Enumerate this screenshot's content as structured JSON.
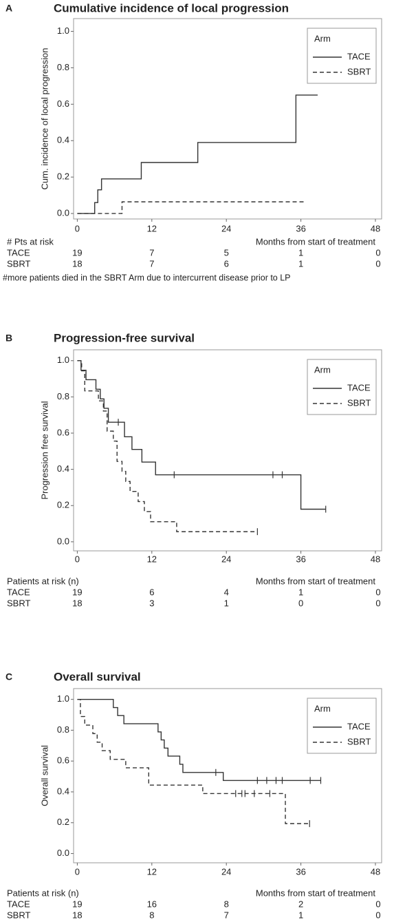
{
  "chart_data": [
    {
      "type": "line",
      "drawstyle": "steps-post",
      "panel": "A",
      "title": "Cumulative incidence of local progression",
      "ylabel": "Cum. incidence of local progression",
      "xlabel": "Months from start of treatment",
      "xlim": [
        -0.6,
        49
      ],
      "ylim": [
        -0.03,
        1.07
      ],
      "xticks": [
        0,
        12,
        24,
        36,
        48
      ],
      "yticks": [
        {
          "value": 0,
          "label": "0.0"
        },
        {
          "value": 0.2,
          "label": "0.2"
        },
        {
          "value": 0.4,
          "label": "0.4"
        },
        {
          "value": 0.6,
          "label": "0.6"
        },
        {
          "value": 0.8,
          "label": "0.8"
        },
        {
          "value": 1,
          "label": "1.0"
        }
      ],
      "legend_title": "Arm",
      "legend": "upper right",
      "series": [
        {
          "name": "TACE",
          "color": "#333333",
          "dash": "solid",
          "x": [
            0,
            2.8,
            3.3,
            3.9,
            10.3,
            19.4,
            35.2,
            38.7
          ],
          "values": [
            0,
            0.06,
            0.13,
            0.19,
            0.28,
            0.39,
            0.65,
            0.65
          ],
          "censored": []
        },
        {
          "name": "SBRT",
          "color": "#333333",
          "dash": "dashed",
          "x": [
            0,
            7.2,
            36.7
          ],
          "values": [
            0,
            0.064,
            0.064
          ],
          "censored": []
        }
      ],
      "risk_table": {
        "title": "# Pts at risk",
        "rows": [
          {
            "name": "TACE",
            "values": [
              19,
              7,
              5,
              1,
              0
            ]
          },
          {
            "name": "SBRT",
            "values": [
              18,
              7,
              6,
              1,
              0
            ]
          }
        ]
      },
      "footnote": "#more patients died in the SBRT Arm due to intercurrent disease prior to LP"
    },
    {
      "type": "line",
      "drawstyle": "steps-post",
      "panel": "B",
      "title": "Progression-free survival",
      "ylabel": "Progression free survival",
      "xlabel": "Months from start of treatment",
      "xlim": [
        -0.6,
        49
      ],
      "ylim": [
        -0.05,
        1.06
      ],
      "xticks": [
        0,
        12,
        24,
        36,
        48
      ],
      "yticks": [
        {
          "value": 0,
          "label": "0.0"
        },
        {
          "value": 0.2,
          "label": "0.2"
        },
        {
          "value": 0.4,
          "label": "0.4"
        },
        {
          "value": 0.6,
          "label": "0.6"
        },
        {
          "value": 0.8,
          "label": "0.8"
        },
        {
          "value": 1,
          "label": "1.0"
        }
      ],
      "legend_title": "Arm",
      "legend": "upper right",
      "series": [
        {
          "name": "TACE",
          "color": "#333333",
          "dash": "solid",
          "x": [
            0,
            0.6,
            1.4,
            3.0,
            3.7,
            4.3,
            5.0,
            7.6,
            8.8,
            10.4,
            11.4,
            12.6,
            36.0,
            40.0
          ],
          "values": [
            1,
            0.947,
            0.895,
            0.842,
            0.789,
            0.737,
            0.66,
            0.58,
            0.51,
            0.44,
            0.44,
            0.37,
            0.18,
            0.18
          ],
          "censored": [
            6.6,
            15.6,
            31.5,
            33.0,
            40.0
          ]
        },
        {
          "name": "SBRT",
          "color": "#333333",
          "dash": "dashed",
          "x": [
            0,
            0.7,
            1.2,
            3.4,
            4.2,
            4.8,
            5.8,
            6.4,
            7.2,
            7.8,
            8.5,
            9.8,
            10.8,
            11.8,
            16.0,
            29.0
          ],
          "values": [
            1,
            0.944,
            0.833,
            0.778,
            0.722,
            0.611,
            0.556,
            0.444,
            0.389,
            0.333,
            0.278,
            0.222,
            0.167,
            0.111,
            0.056,
            0.056
          ],
          "censored": [
            29.0
          ]
        }
      ],
      "risk_table": {
        "title": "Patients at risk (n)",
        "rows": [
          {
            "name": "TACE",
            "values": [
              19,
              6,
              4,
              1,
              0
            ]
          },
          {
            "name": "SBRT",
            "values": [
              18,
              3,
              1,
              0,
              0
            ]
          }
        ]
      }
    },
    {
      "type": "line",
      "drawstyle": "steps-post",
      "panel": "C",
      "title": "Overall survival",
      "ylabel": "Overall survival",
      "xlabel": "Months from start of treatment",
      "xlim": [
        -0.6,
        49
      ],
      "ylim": [
        -0.06,
        1.07
      ],
      "xticks": [
        0,
        12,
        24,
        36,
        48
      ],
      "yticks": [
        {
          "value": 0,
          "label": "0.0"
        },
        {
          "value": 0.2,
          "label": "0.2"
        },
        {
          "value": 0.4,
          "label": "0.4"
        },
        {
          "value": 0.6,
          "label": "0.6"
        },
        {
          "value": 0.8,
          "label": "0.8"
        },
        {
          "value": 1,
          "label": "1.0"
        }
      ],
      "legend_title": "Arm",
      "legend": "upper right",
      "series": [
        {
          "name": "TACE",
          "color": "#333333",
          "dash": "solid",
          "x": [
            0,
            5.8,
            6.5,
            7.5,
            13.0,
            13.5,
            14.0,
            14.6,
            16.5,
            17.0,
            23.5,
            39.2
          ],
          "values": [
            1,
            0.947,
            0.895,
            0.842,
            0.789,
            0.737,
            0.684,
            0.632,
            0.579,
            0.526,
            0.474,
            0.474
          ],
          "censored": [
            22.3,
            29.0,
            30.5,
            32.0,
            33.0,
            37.5,
            39.2
          ]
        },
        {
          "name": "SBRT",
          "color": "#333333",
          "dash": "dashed",
          "x": [
            0,
            0.5,
            1.2,
            2.5,
            3.2,
            4.0,
            5.3,
            7.8,
            11.5,
            20.2,
            33.5,
            37.4
          ],
          "values": [
            1,
            0.889,
            0.833,
            0.778,
            0.722,
            0.667,
            0.611,
            0.556,
            0.444,
            0.389,
            0.194,
            0.194
          ],
          "censored": [
            25.5,
            26.5,
            27.0,
            28.5,
            31.0,
            37.4
          ]
        }
      ],
      "risk_table": {
        "title": "Patients at risk (n)",
        "rows": [
          {
            "name": "TACE",
            "values": [
              19,
              16,
              8,
              2,
              0
            ]
          },
          {
            "name": "SBRT",
            "values": [
              18,
              8,
              7,
              1,
              0
            ]
          }
        ]
      }
    }
  ]
}
